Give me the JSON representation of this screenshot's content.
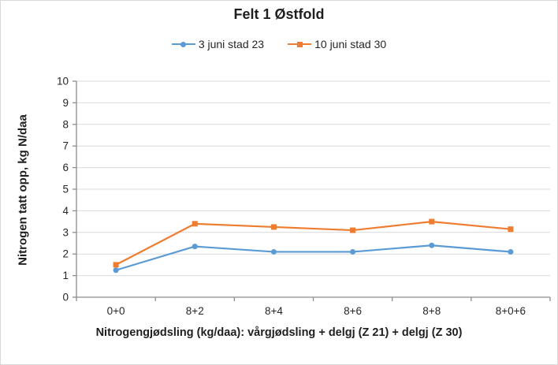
{
  "chart_data": {
    "type": "line",
    "title": "Felt 1 Østfold",
    "categories": [
      "0+0",
      "8+2",
      "8+4",
      "8+6",
      "8+8",
      "8+0+6"
    ],
    "series": [
      {
        "name": "3 juni stad 23",
        "color": "#5B9BD5",
        "marker": "circle",
        "values": [
          1.25,
          2.35,
          2.1,
          2.1,
          2.4,
          2.1
        ]
      },
      {
        "name": "10 juni stad 30",
        "color": "#ED7D31",
        "marker": "square",
        "values": [
          1.5,
          3.4,
          3.25,
          3.1,
          3.5,
          3.15
        ]
      }
    ],
    "xlabel": "Nitrogengjødsling (kg/daa): vårgjødsling + delgj (Z 21) + delgj (Z 30)",
    "ylabel": "Nitrogen tatt opp, kg N/daa",
    "ylim": [
      0,
      10
    ],
    "ytick_step": 1,
    "grid": true,
    "legend_position": "top",
    "colors": {
      "gridline": "#D9D9D9",
      "axis": "#8C8C8C",
      "text": "#262626",
      "background": "#FFFFFF",
      "border": "#D9D9D9"
    }
  }
}
